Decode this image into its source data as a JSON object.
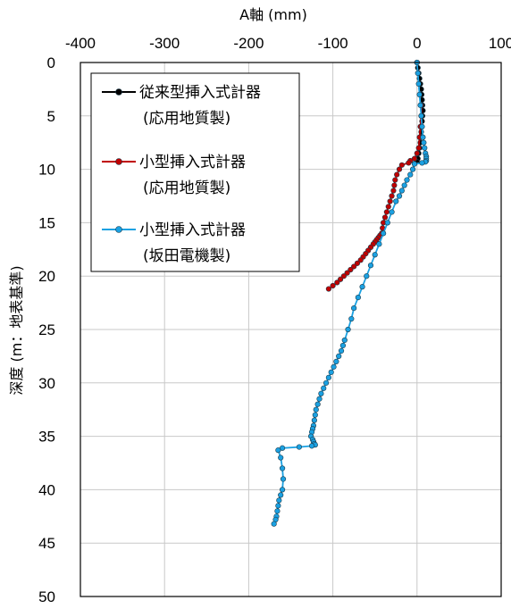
{
  "chart_data": {
    "type": "line",
    "xlabel": "A軸 (mm)",
    "ylabel": "深度 (m：地表基準)",
    "xlim": [
      -400,
      100
    ],
    "ylim": [
      0,
      50
    ],
    "y_inverted": true,
    "x_axis_position": "top",
    "x_ticks": [
      "-400",
      "-300",
      "-200",
      "-100",
      "0",
      "100"
    ],
    "y_ticks": [
      "0",
      "5",
      "10",
      "15",
      "20",
      "25",
      "30",
      "35",
      "40",
      "45",
      "50"
    ],
    "grid": true,
    "legend_position": "top-left",
    "series": [
      {
        "name_line1": "従来型挿入式計器",
        "name_line2": "(応用地質製)",
        "color": "#000000",
        "x": [
          0,
          1,
          2,
          3,
          4,
          5,
          5.5,
          6,
          6.5,
          7,
          6.5,
          6,
          5.5,
          5,
          4.5,
          4,
          3,
          2,
          1,
          0
        ],
        "y": [
          0,
          0.5,
          1,
          1.5,
          2,
          2.5,
          3,
          3.5,
          4,
          4.5,
          5,
          5.5,
          6,
          6.5,
          7,
          7.5,
          8,
          8.5,
          9,
          9.3
        ]
      },
      {
        "name_line1": "小型挿入式計器",
        "name_line2": "(応用地質製)",
        "color": "#c00000",
        "x": [
          5,
          5,
          4,
          3,
          2,
          0,
          -3,
          -8,
          -10,
          -18,
          -21,
          -24,
          -26,
          -27,
          -28,
          -30,
          -32,
          -34,
          -36,
          -38,
          -40,
          -41,
          -42,
          -44,
          -46,
          -48,
          -50,
          -52,
          -55,
          -58,
          -61,
          -64,
          -67,
          -71,
          -75,
          -79,
          -83,
          -87,
          -91,
          -95,
          -100,
          -105
        ],
        "y": [
          4,
          5,
          6,
          7,
          8,
          8.5,
          9,
          9.2,
          9.4,
          9.6,
          10,
          10.5,
          11,
          11.5,
          12,
          12.5,
          13,
          13.5,
          14,
          14.5,
          15,
          15.5,
          16,
          16.2,
          16.4,
          16.6,
          16.8,
          17,
          17.3,
          17.6,
          17.9,
          18.2,
          18.5,
          18.8,
          19.1,
          19.4,
          19.7,
          20,
          20.3,
          20.6,
          20.9,
          21.2
        ]
      },
      {
        "name_line1": "小型挿入式計器",
        "name_line2": "(坂田電機製)",
        "color": "#1ba1e2",
        "x": [
          0,
          1,
          2,
          3,
          4,
          5,
          6,
          7,
          8,
          9,
          10,
          11,
          11,
          11,
          10,
          6,
          -3,
          -5,
          -8,
          -12,
          -15,
          -18,
          -21,
          -25,
          -30,
          -35,
          -40,
          -45,
          -50,
          -55,
          -60,
          -65,
          -70,
          -75,
          -78,
          -82,
          -86,
          -88,
          -90,
          -93,
          -96,
          -99,
          -102,
          -105,
          -108,
          -111,
          -114,
          -116,
          -118,
          -120,
          -121,
          -122,
          -123,
          -124,
          -125,
          -126,
          -124,
          -123,
          -122,
          -121,
          -125,
          -140,
          -160,
          -165,
          -162,
          -160,
          -159,
          -160,
          -162,
          -164,
          -165,
          -166,
          -167,
          -168,
          -170
        ],
        "y": [
          0,
          1,
          2,
          3,
          4,
          5,
          6,
          7,
          7.5,
          8,
          8.5,
          8.8,
          9,
          9.2,
          9.3,
          9.4,
          9.5,
          10,
          10.5,
          11,
          11.5,
          12,
          12.5,
          13,
          14,
          15,
          16,
          17,
          18,
          19,
          20,
          21,
          22,
          23,
          24,
          25,
          26,
          26.5,
          27,
          27.5,
          28,
          28.5,
          29,
          29.5,
          30,
          30.5,
          31,
          31.5,
          32,
          32.5,
          33,
          33.5,
          34,
          34.3,
          34.6,
          35,
          35.3,
          35.5,
          35.7,
          35.8,
          35.9,
          36,
          36.1,
          36.3,
          37,
          38,
          39,
          40,
          40.5,
          41,
          41.5,
          42,
          42.5,
          42.8,
          43.2
        ]
      }
    ]
  }
}
